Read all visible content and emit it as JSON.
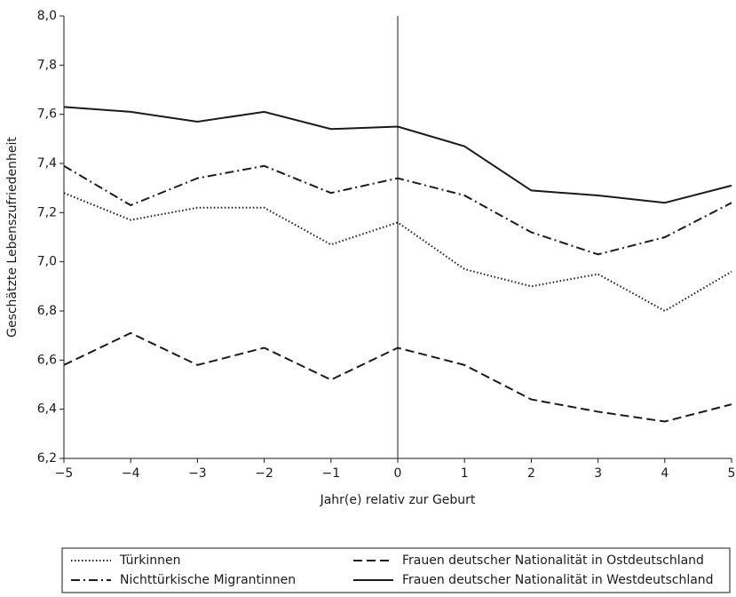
{
  "chart_data": {
    "type": "line",
    "x_label": "Jahr(e) relativ zur Geburt",
    "y_label": "Geschätzte Lebenszufriedenheit",
    "x": [
      -5,
      -4,
      -3,
      -2,
      -1,
      0,
      1,
      2,
      3,
      4,
      5
    ],
    "xlim": [
      -5,
      5
    ],
    "xticks": [
      {
        "value": -5,
        "label": "−5"
      },
      {
        "value": -4,
        "label": "−4"
      },
      {
        "value": -3,
        "label": "−3"
      },
      {
        "value": -2,
        "label": "−2"
      },
      {
        "value": -1,
        "label": "−1"
      },
      0,
      1,
      2,
      3,
      4,
      5
    ],
    "ylim": [
      6.2,
      8.0
    ],
    "yticks": [
      {
        "value": 6.2,
        "label": "6,2"
      },
      {
        "value": 6.4,
        "label": "6,4"
      },
      {
        "value": 6.6,
        "label": "6,6"
      },
      {
        "value": 6.8,
        "label": "6,8"
      },
      {
        "value": 7.0,
        "label": "7,0"
      },
      {
        "value": 7.2,
        "label": "7,2"
      },
      {
        "value": 7.4,
        "label": "7,4"
      },
      {
        "value": 7.6,
        "label": "7,6"
      },
      {
        "value": 7.8,
        "label": "7,8"
      },
      {
        "value": 8.0,
        "label": "8,0"
      }
    ],
    "grid": false,
    "reference_line_x": 0,
    "legend": "bottom",
    "series": [
      {
        "name": "Türkinnen",
        "color": "#1a1a1a",
        "style": "dotted",
        "values": [
          7.28,
          7.17,
          7.22,
          7.22,
          7.07,
          7.16,
          6.97,
          6.9,
          6.95,
          6.8,
          6.96
        ]
      },
      {
        "name": "Frauen deutscher Nationalität in Ostdeutschland",
        "color": "#1a1a1a",
        "style": "dashed",
        "values": [
          6.58,
          6.71,
          6.58,
          6.65,
          6.52,
          6.65,
          6.58,
          6.44,
          6.39,
          6.35,
          6.42
        ]
      },
      {
        "name": "Nichttürkische Migrantinnen",
        "color": "#1a1a1a",
        "style": "dashdot",
        "values": [
          7.39,
          7.23,
          7.34,
          7.39,
          7.28,
          7.34,
          7.27,
          7.12,
          7.03,
          7.1,
          7.24
        ]
      },
      {
        "name": "Frauen deutscher Nationalität in Westdeutschland",
        "color": "#1a1a1a",
        "style": "solid",
        "values": [
          7.63,
          7.61,
          7.57,
          7.61,
          7.54,
          7.55,
          7.47,
          7.29,
          7.27,
          7.24,
          7.31
        ]
      }
    ]
  }
}
